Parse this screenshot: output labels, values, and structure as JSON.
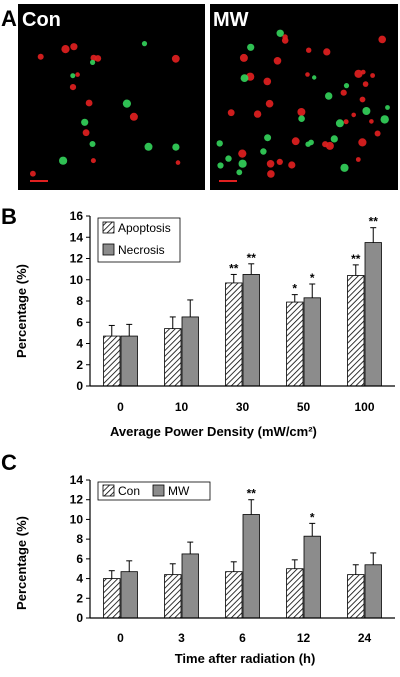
{
  "panel_a": {
    "letter": "A",
    "images": [
      {
        "label": "Con",
        "red_cells": 14,
        "green_cells": 9
      },
      {
        "label": "MW",
        "red_cells": 34,
        "green_cells": 22
      }
    ],
    "background_color": "#000000",
    "red_cell_color": "#e02020",
    "green_cell_color": "#33d05a",
    "scale_bar_color": "#e02020"
  },
  "chart_data": [
    {
      "panel": "B",
      "type": "bar",
      "categories": [
        "0",
        "10",
        "30",
        "50",
        "100"
      ],
      "series": [
        {
          "name": "Apoptosis",
          "pattern": "hatched",
          "values": [
            4.7,
            5.4,
            9.7,
            7.9,
            10.4
          ],
          "errors": [
            1.0,
            1.1,
            0.8,
            0.7,
            1.0
          ],
          "significance": [
            "",
            "",
            "**",
            "*",
            "**"
          ]
        },
        {
          "name": "Necrosis",
          "pattern": "solid",
          "values": [
            4.7,
            6.5,
            10.5,
            8.3,
            13.5
          ],
          "errors": [
            1.1,
            1.6,
            1.0,
            1.3,
            1.4
          ],
          "significance": [
            "",
            "",
            "**",
            "*",
            "**"
          ]
        }
      ],
      "xlabel": "Average Power Density",
      "xlabel_unit": "(mW/cm²)",
      "ylabel": "Percentage (%)",
      "ylim": [
        0,
        16
      ],
      "yticks": [
        0,
        2,
        4,
        6,
        8,
        10,
        12,
        14,
        16
      ],
      "legend_position": "top-left",
      "grid": false
    },
    {
      "panel": "C",
      "type": "bar",
      "categories": [
        "0",
        "3",
        "6",
        "12",
        "24"
      ],
      "series": [
        {
          "name": "Con",
          "pattern": "hatched",
          "values": [
            4.0,
            4.4,
            4.7,
            5.0,
            4.4
          ],
          "errors": [
            0.8,
            1.1,
            1.0,
            0.9,
            1.0
          ],
          "significance": [
            "",
            "",
            "",
            "",
            ""
          ]
        },
        {
          "name": "MW",
          "pattern": "solid",
          "values": [
            4.7,
            6.5,
            10.5,
            8.3,
            5.4
          ],
          "errors": [
            1.1,
            1.2,
            1.5,
            1.3,
            1.2
          ],
          "significance": [
            "",
            "",
            "**",
            "*",
            ""
          ]
        }
      ],
      "xlabel": "Time after radiation  (h)",
      "ylabel": "Percentage (%)",
      "ylim": [
        0,
        14
      ],
      "yticks": [
        0,
        2,
        4,
        6,
        8,
        10,
        12,
        14
      ],
      "legend_position": "top-left",
      "grid": false
    }
  ],
  "colors": {
    "bar_fill": "#8c8c8c",
    "hatch": "#000000",
    "axis": "#000000"
  }
}
